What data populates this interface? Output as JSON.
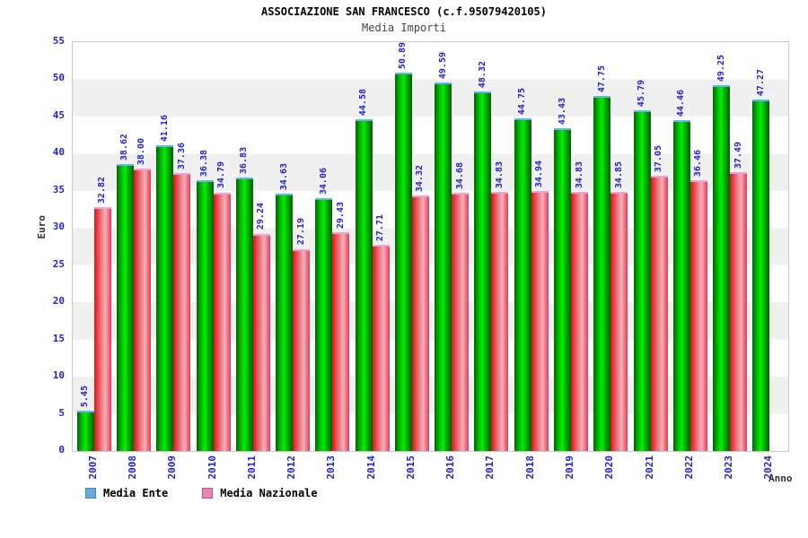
{
  "chart_data": {
    "type": "bar",
    "title": "ASSOCIAZIONE SAN FRANCESCO (c.f.95079420105)",
    "subtitle": "Media Importi",
    "xlabel": "Anno",
    "ylabel": "Euro",
    "ylim": [
      0,
      55
    ],
    "ytick_step": 5,
    "grid": "alternating horizontal bands every 5 units, white and light gray",
    "legend_position": "bottom-left",
    "categories": [
      "2007",
      "2008",
      "2009",
      "2010",
      "2011",
      "2012",
      "2013",
      "2014",
      "2015",
      "2016",
      "2017",
      "2018",
      "2019",
      "2020",
      "2021",
      "2022",
      "2023",
      "2024"
    ],
    "series": [
      {
        "name": "Media Ente",
        "bar_style": "green",
        "bar_color": "#00c300",
        "legend_color": "#6fa8dc",
        "values": [
          5.45,
          38.62,
          41.16,
          36.38,
          36.83,
          34.63,
          34.06,
          44.58,
          50.89,
          49.59,
          48.32,
          44.75,
          43.43,
          47.75,
          45.79,
          44.46,
          49.25,
          47.27
        ]
      },
      {
        "name": "Media Nazionale",
        "bar_style": "red",
        "bar_color": "#e63a52",
        "legend_color": "#e883b4",
        "values": [
          32.82,
          38.0,
          37.36,
          34.79,
          29.24,
          27.19,
          29.43,
          27.71,
          34.32,
          34.68,
          34.83,
          34.94,
          34.83,
          34.85,
          37.05,
          36.46,
          37.49,
          null
        ]
      }
    ],
    "value_label_color": "#2222cc",
    "tick_label_color": "#2222cc"
  }
}
